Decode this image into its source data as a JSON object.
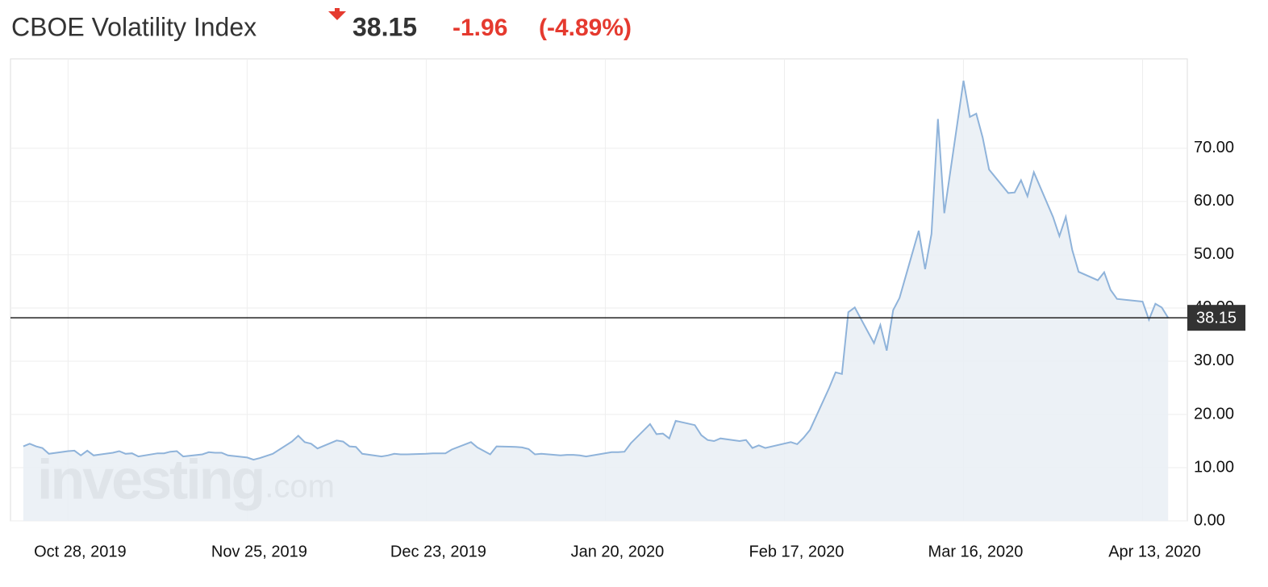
{
  "header": {
    "title": "CBOE Volatility Index",
    "price": "38.15",
    "change": "-1.96",
    "change_percent": "(-4.89%)"
  },
  "chart_data": {
    "type": "area",
    "watermark": "investing",
    "watermark_suffix": ".com",
    "x": [
      "2019-10-21",
      "2019-10-22",
      "2019-10-23",
      "2019-10-24",
      "2019-10-25",
      "2019-10-28",
      "2019-10-29",
      "2019-10-30",
      "2019-10-31",
      "2019-11-01",
      "2019-11-04",
      "2019-11-05",
      "2019-11-06",
      "2019-11-07",
      "2019-11-08",
      "2019-11-11",
      "2019-11-12",
      "2019-11-13",
      "2019-11-14",
      "2019-11-15",
      "2019-11-18",
      "2019-11-19",
      "2019-11-20",
      "2019-11-21",
      "2019-11-22",
      "2019-11-25",
      "2019-11-26",
      "2019-11-27",
      "2019-11-29",
      "2019-12-02",
      "2019-12-03",
      "2019-12-04",
      "2019-12-05",
      "2019-12-06",
      "2019-12-09",
      "2019-12-10",
      "2019-12-11",
      "2019-12-12",
      "2019-12-13",
      "2019-12-16",
      "2019-12-17",
      "2019-12-18",
      "2019-12-19",
      "2019-12-20",
      "2019-12-23",
      "2019-12-24",
      "2019-12-26",
      "2019-12-27",
      "2019-12-30",
      "2019-12-31",
      "2020-01-02",
      "2020-01-03",
      "2020-01-06",
      "2020-01-07",
      "2020-01-08",
      "2020-01-09",
      "2020-01-10",
      "2020-01-13",
      "2020-01-14",
      "2020-01-15",
      "2020-01-16",
      "2020-01-17",
      "2020-01-21",
      "2020-01-22",
      "2020-01-23",
      "2020-01-24",
      "2020-01-27",
      "2020-01-28",
      "2020-01-29",
      "2020-01-30",
      "2020-01-31",
      "2020-02-03",
      "2020-02-04",
      "2020-02-05",
      "2020-02-06",
      "2020-02-07",
      "2020-02-10",
      "2020-02-11",
      "2020-02-12",
      "2020-02-13",
      "2020-02-14",
      "2020-02-18",
      "2020-02-19",
      "2020-02-20",
      "2020-02-21",
      "2020-02-24",
      "2020-02-25",
      "2020-02-26",
      "2020-02-27",
      "2020-02-28",
      "2020-03-02",
      "2020-03-03",
      "2020-03-04",
      "2020-03-05",
      "2020-03-06",
      "2020-03-09",
      "2020-03-10",
      "2020-03-11",
      "2020-03-12",
      "2020-03-13",
      "2020-03-16",
      "2020-03-17",
      "2020-03-18",
      "2020-03-19",
      "2020-03-20",
      "2020-03-23",
      "2020-03-24",
      "2020-03-25",
      "2020-03-26",
      "2020-03-27",
      "2020-03-30",
      "2020-03-31",
      "2020-04-01",
      "2020-04-02",
      "2020-04-03",
      "2020-04-06",
      "2020-04-07",
      "2020-04-08",
      "2020-04-09",
      "2020-04-13",
      "2020-04-14",
      "2020-04-15",
      "2020-04-16",
      "2020-04-17"
    ],
    "values": [
      14.0,
      14.5,
      14.0,
      13.7,
      12.6,
      13.1,
      13.2,
      12.3,
      13.2,
      12.3,
      12.8,
      13.1,
      12.6,
      12.7,
      12.1,
      12.7,
      12.7,
      13.0,
      13.1,
      12.1,
      12.5,
      12.9,
      12.8,
      12.8,
      12.3,
      11.9,
      11.5,
      11.8,
      12.6,
      14.9,
      16.0,
      14.8,
      14.5,
      13.6,
      15.1,
      14.9,
      14.0,
      13.9,
      12.6,
      12.1,
      12.3,
      12.6,
      12.5,
      12.5,
      12.6,
      12.7,
      12.7,
      13.4,
      14.8,
      13.8,
      12.5,
      14.0,
      13.9,
      13.8,
      13.5,
      12.5,
      12.6,
      12.3,
      12.4,
      12.4,
      12.3,
      12.1,
      12.9,
      12.9,
      13.0,
      14.6,
      18.2,
      16.3,
      16.4,
      15.5,
      18.8,
      18.0,
      16.1,
      15.2,
      15.0,
      15.5,
      15.0,
      15.2,
      13.7,
      14.2,
      13.7,
      14.8,
      14.4,
      15.6,
      17.1,
      25.0,
      27.9,
      27.6,
      39.2,
      40.1,
      33.4,
      36.8,
      32.0,
      39.6,
      41.9,
      54.5,
      47.3,
      53.9,
      75.5,
      57.8,
      82.7,
      75.9,
      76.5,
      72.0,
      66.0,
      61.6,
      61.7,
      64.0,
      61.0,
      65.5,
      57.1,
      53.5,
      57.1,
      50.9,
      46.8,
      45.2,
      46.7,
      43.4,
      41.7,
      41.2,
      37.8,
      40.8,
      40.1,
      38.15
    ],
    "line_color": "#8fb3da",
    "fill_color": "#e9eef5",
    "current_value": 38.15,
    "current_value_label": "38.15",
    "xlim": [
      "2019-10-19",
      "2020-04-20"
    ],
    "xticks": [
      {
        "value": "2019-10-28",
        "label": "Oct 28, 2019"
      },
      {
        "value": "2019-11-25",
        "label": "Nov 25, 2019"
      },
      {
        "value": "2019-12-23",
        "label": "Dec 23, 2019"
      },
      {
        "value": "2020-01-20",
        "label": "Jan 20, 2020"
      },
      {
        "value": "2020-02-17",
        "label": "Feb 17, 2020"
      },
      {
        "value": "2020-03-16",
        "label": "Mar 16, 2020"
      },
      {
        "value": "2020-04-13",
        "label": "Apr 13, 2020"
      }
    ],
    "ylim": [
      0,
      86.8
    ],
    "yticks": [
      {
        "value": 0,
        "label": "0.00"
      },
      {
        "value": 10,
        "label": "10.00"
      },
      {
        "value": 20,
        "label": "20.00"
      },
      {
        "value": 30,
        "label": "30.00"
      },
      {
        "value": 40,
        "label": "40.00"
      },
      {
        "value": 50,
        "label": "50.00"
      },
      {
        "value": 60,
        "label": "60.00"
      },
      {
        "value": 70,
        "label": "70.00"
      }
    ],
    "grid": true
  }
}
